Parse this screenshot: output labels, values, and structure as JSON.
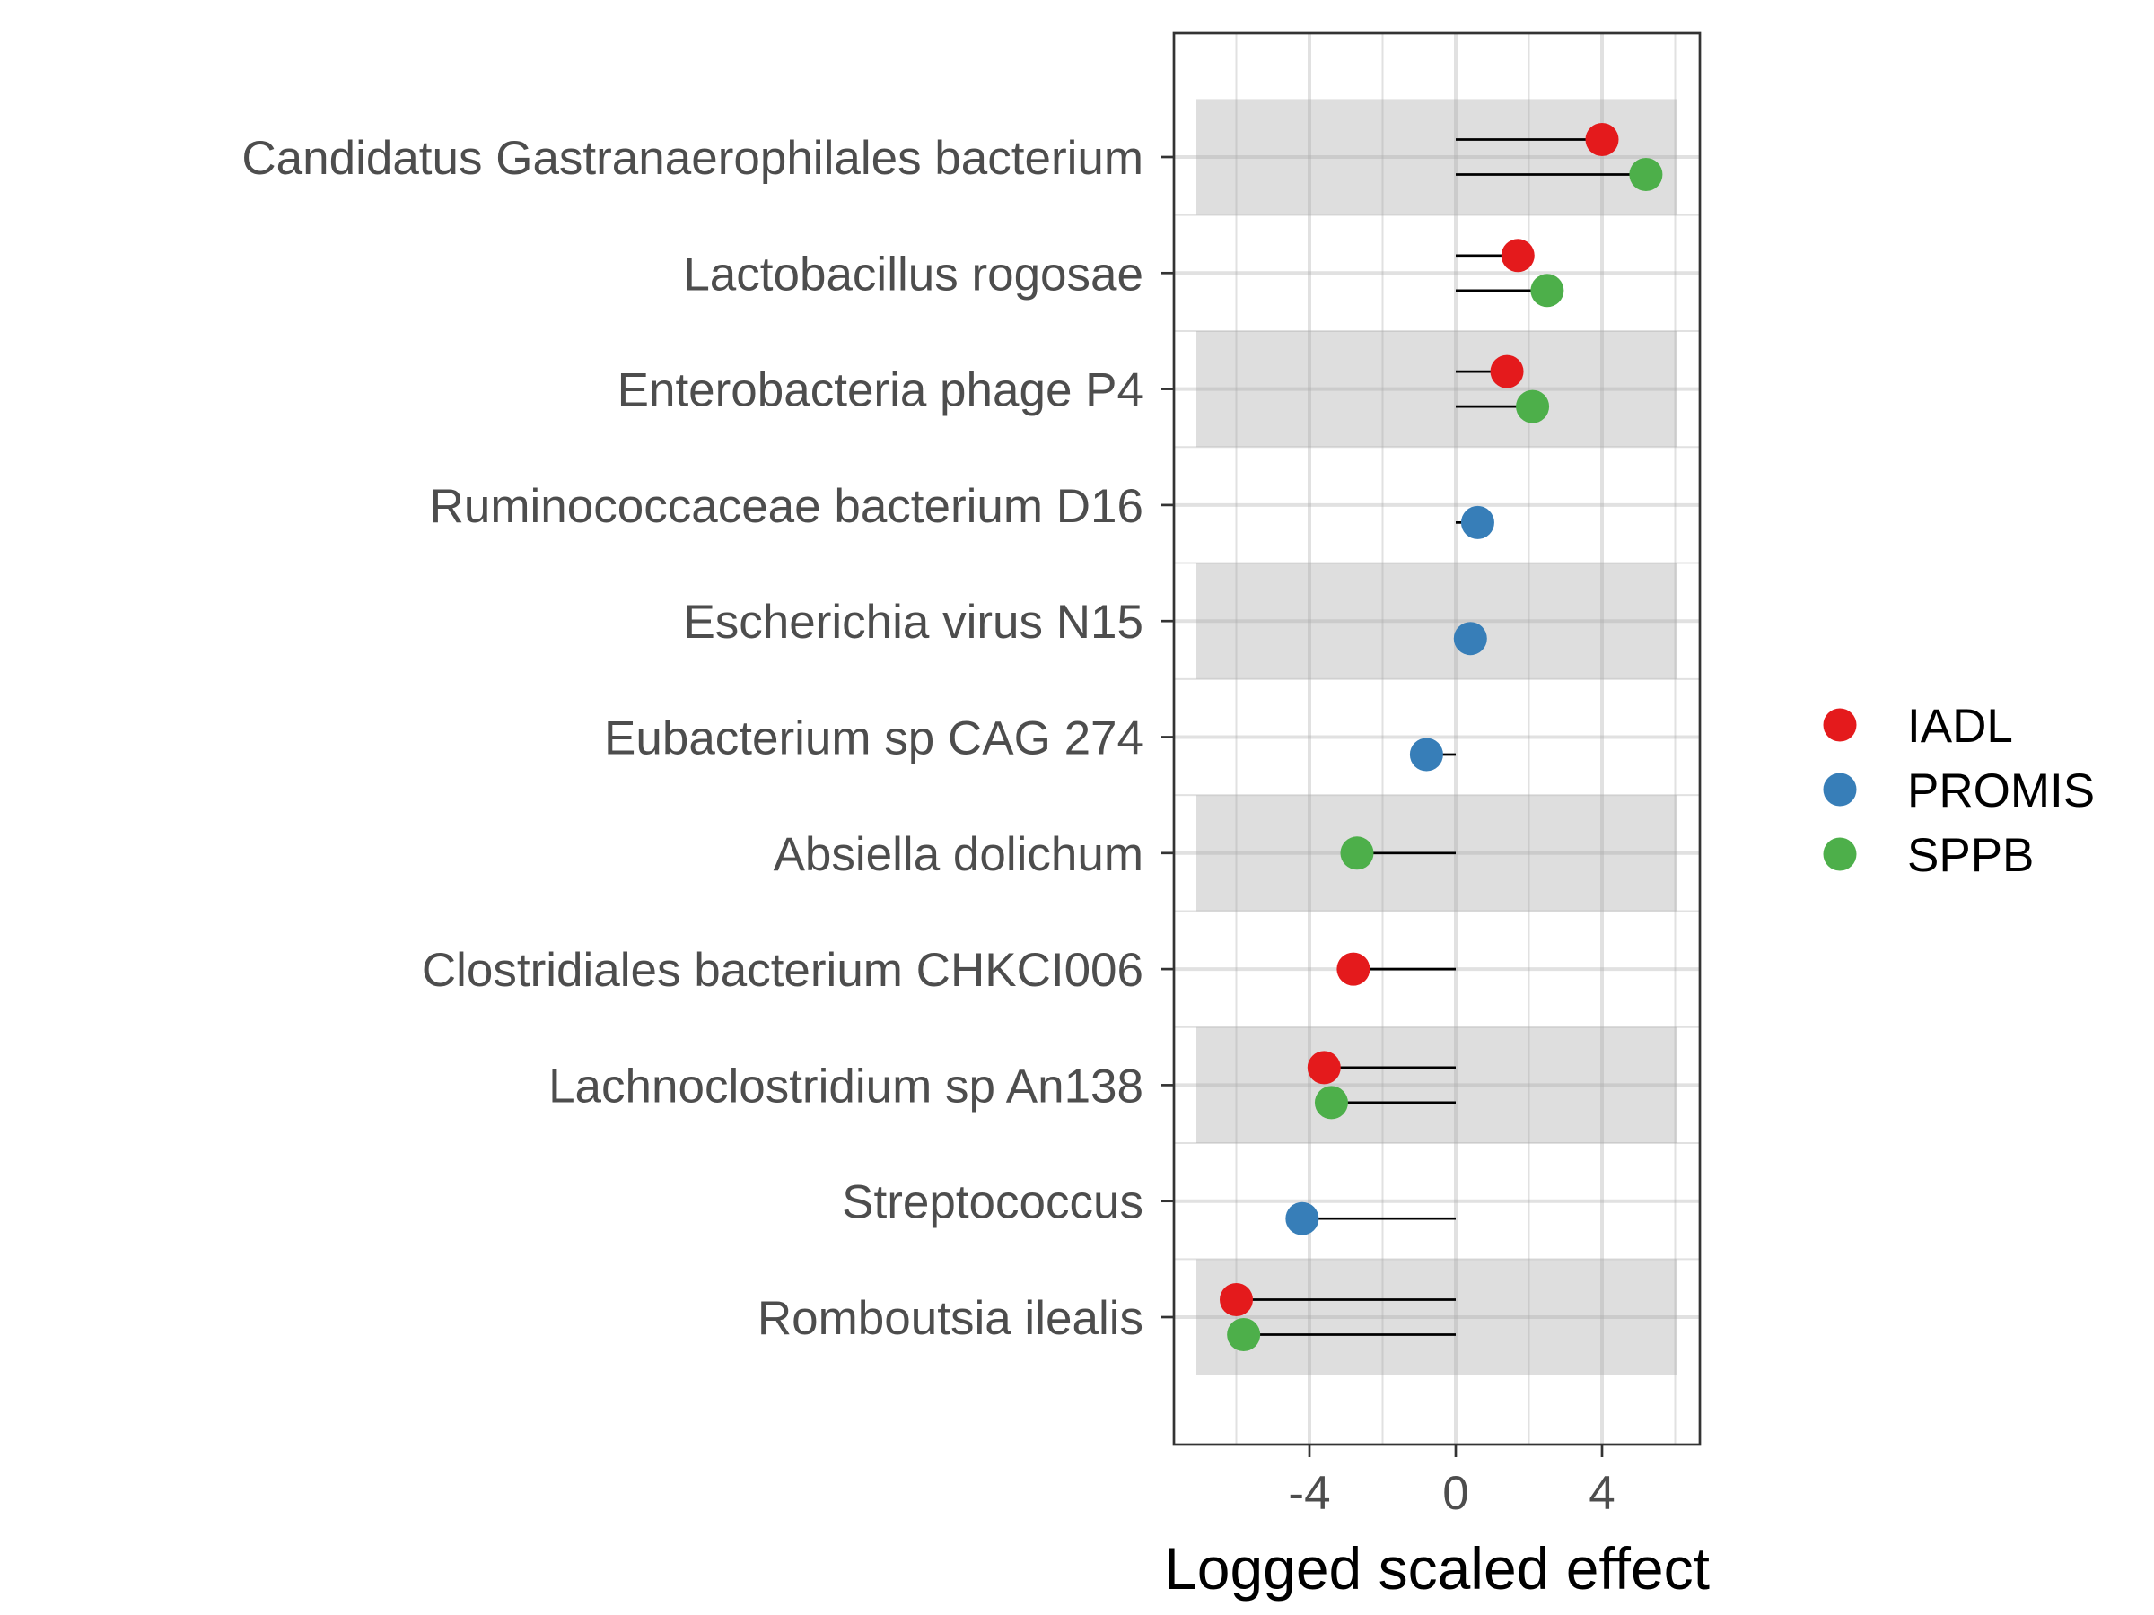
{
  "chart_data": {
    "type": "lollipop",
    "xlabel": "Logged scaled effect",
    "xlim": [
      -7.6,
      6.6
    ],
    "xticks": [
      -4,
      0,
      4
    ],
    "xtick_labels": [
      "-4",
      "0",
      "4"
    ],
    "grid": true,
    "legend_position": "right",
    "categories": [
      "Candidatus Gastranaerophilales bacterium",
      "Lactobacillus rogosae",
      "Enterobacteria phage P4",
      "Ruminococcaceae bacterium D16",
      "Escherichia virus N15",
      "Eubacterium sp CAG 274",
      "Absiella dolichum",
      "Clostridiales bacterium CHKCI006",
      "Lachnoclostridium sp An138",
      "Streptococcus",
      "Romboutsia ilealis"
    ],
    "shaded_categories": [
      "Candidatus Gastranaerophilales bacterium",
      "Enterobacteria phage P4",
      "Escherichia virus N15",
      "Absiella dolichum",
      "Lachnoclostridium sp An138",
      "Romboutsia ilealis"
    ],
    "series": [
      {
        "name": "IADL",
        "color": "#e41a1c",
        "values": [
          4.0,
          1.7,
          1.4,
          null,
          null,
          null,
          null,
          -2.8,
          -3.6,
          null,
          -6.0
        ]
      },
      {
        "name": "PROMIS",
        "color": "#377eb8",
        "values": [
          null,
          null,
          null,
          0.6,
          0.4,
          -0.8,
          null,
          null,
          null,
          -4.2,
          null
        ]
      },
      {
        "name": "SPPB",
        "color": "#4daf4a",
        "values": [
          5.2,
          2.5,
          2.1,
          null,
          null,
          null,
          -2.7,
          null,
          -3.4,
          null,
          -5.8
        ]
      }
    ]
  }
}
